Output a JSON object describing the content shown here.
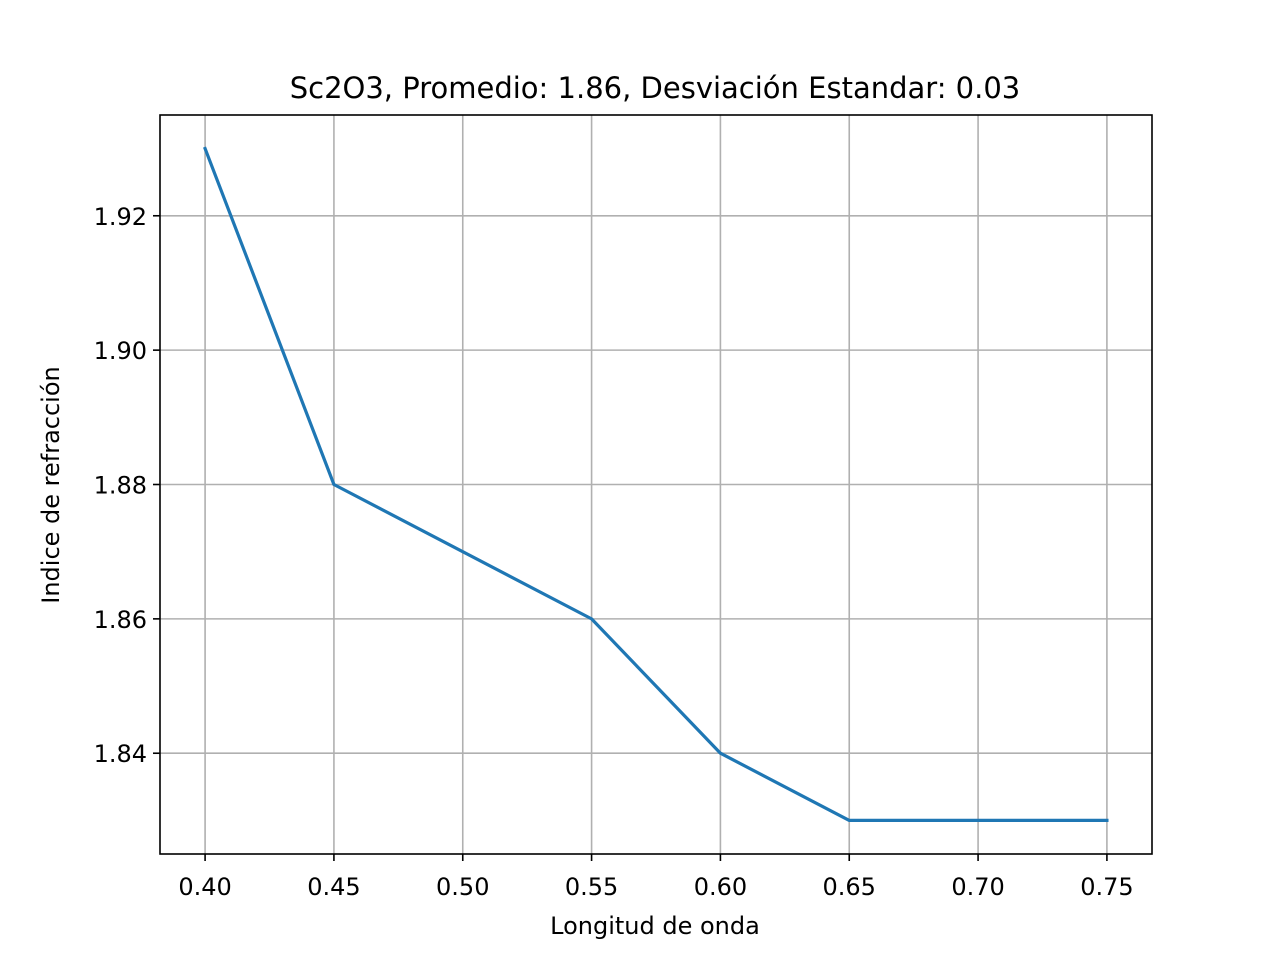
{
  "chart_data": {
    "type": "line",
    "title": "Sc2O3, Promedio: 1.86, Desviación Estandar: 0.03",
    "xlabel": "Longitud de onda",
    "ylabel": "Indice de refracción",
    "x": [
      0.4,
      0.45,
      0.5,
      0.55,
      0.6,
      0.65,
      0.7,
      0.75
    ],
    "series": [
      {
        "values": [
          1.93,
          1.88,
          1.87,
          1.86,
          1.84,
          1.83,
          1.83,
          1.83
        ],
        "color": "#1f77b4"
      }
    ],
    "xlim": [
      0.3825,
      0.7675
    ],
    "ylim": [
      1.825,
      1.935
    ],
    "xticks": [
      0.4,
      0.45,
      0.5,
      0.55,
      0.6,
      0.65,
      0.7,
      0.75
    ],
    "xtick_labels": [
      "0.40",
      "0.45",
      "0.50",
      "0.55",
      "0.60",
      "0.65",
      "0.70",
      "0.75"
    ],
    "yticks": [
      1.84,
      1.86,
      1.88,
      1.9,
      1.92
    ],
    "ytick_labels": [
      "1.84",
      "1.86",
      "1.88",
      "1.90",
      "1.92"
    ],
    "grid": true,
    "grid_color": "#b0b0b0"
  }
}
